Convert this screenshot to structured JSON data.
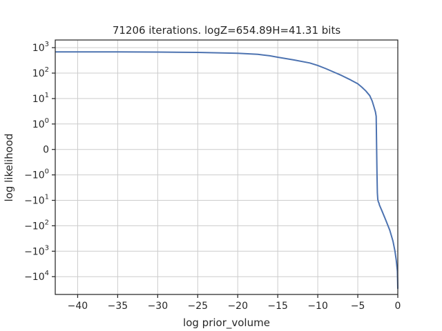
{
  "chart_data": {
    "type": "line",
    "title": "71206 iterations. logZ=654.89H=41.31 bits",
    "xlabel": "log prior_volume",
    "ylabel": "log likelihood",
    "xlim": [
      -42.8,
      0
    ],
    "y_scale": "symlog",
    "y_linthresh": 1,
    "ylim": [
      -50000,
      2000
    ],
    "grid": true,
    "colors": {
      "line": "#4c72b0",
      "grid": "#cccccc",
      "axis": "#262626"
    },
    "x_ticks": [
      {
        "value": -40,
        "label": "−40"
      },
      {
        "value": -35,
        "label": "−35"
      },
      {
        "value": -30,
        "label": "−30"
      },
      {
        "value": -25,
        "label": "−25"
      },
      {
        "value": -20,
        "label": "−20"
      },
      {
        "value": -15,
        "label": "−15"
      },
      {
        "value": -10,
        "label": "−10"
      },
      {
        "value": -5,
        "label": "−5"
      },
      {
        "value": 0,
        "label": "0"
      }
    ],
    "y_ticks": [
      {
        "value": 1000,
        "base": "10",
        "exp": "3"
      },
      {
        "value": 100,
        "base": "10",
        "exp": "2"
      },
      {
        "value": 10,
        "base": "10",
        "exp": "1"
      },
      {
        "value": 1,
        "base": "10",
        "exp": "0"
      },
      {
        "value": 0,
        "base": "0",
        "exp": ""
      },
      {
        "value": -1,
        "base": "−10",
        "exp": "0"
      },
      {
        "value": -10,
        "base": "−10",
        "exp": "1"
      },
      {
        "value": -100,
        "base": "−10",
        "exp": "2"
      },
      {
        "value": -1000,
        "base": "−10",
        "exp": "3"
      },
      {
        "value": -10000,
        "base": "−10",
        "exp": "4"
      }
    ],
    "x": [
      -42.8,
      -40,
      -35,
      -30,
      -25,
      -20,
      -17.5,
      -16,
      -15,
      -13,
      -11,
      -10,
      -9,
      -8,
      -7,
      -6,
      -5,
      -4.5,
      -4,
      -3.5,
      -3.2,
      -3.0,
      -2.8,
      -2.7,
      -2.6,
      -2.55,
      -2.5,
      -2.45,
      -2.4,
      -2.35,
      -2.3,
      -2.2,
      -2.0,
      -1.5,
      -1.0,
      -0.6,
      -0.35,
      -0.2,
      -0.05,
      0
    ],
    "y": [
      680,
      680,
      680,
      670,
      650,
      600,
      545,
      480,
      420,
      330,
      250,
      200,
      150,
      110,
      80,
      56,
      38,
      28,
      20,
      13,
      8,
      5,
      3,
      2,
      -1,
      -5,
      -9,
      -11,
      -12,
      -13,
      -15,
      -18,
      -25,
      -60,
      -150,
      -400,
      -1000,
      -2200,
      -6000,
      -30000
    ]
  }
}
